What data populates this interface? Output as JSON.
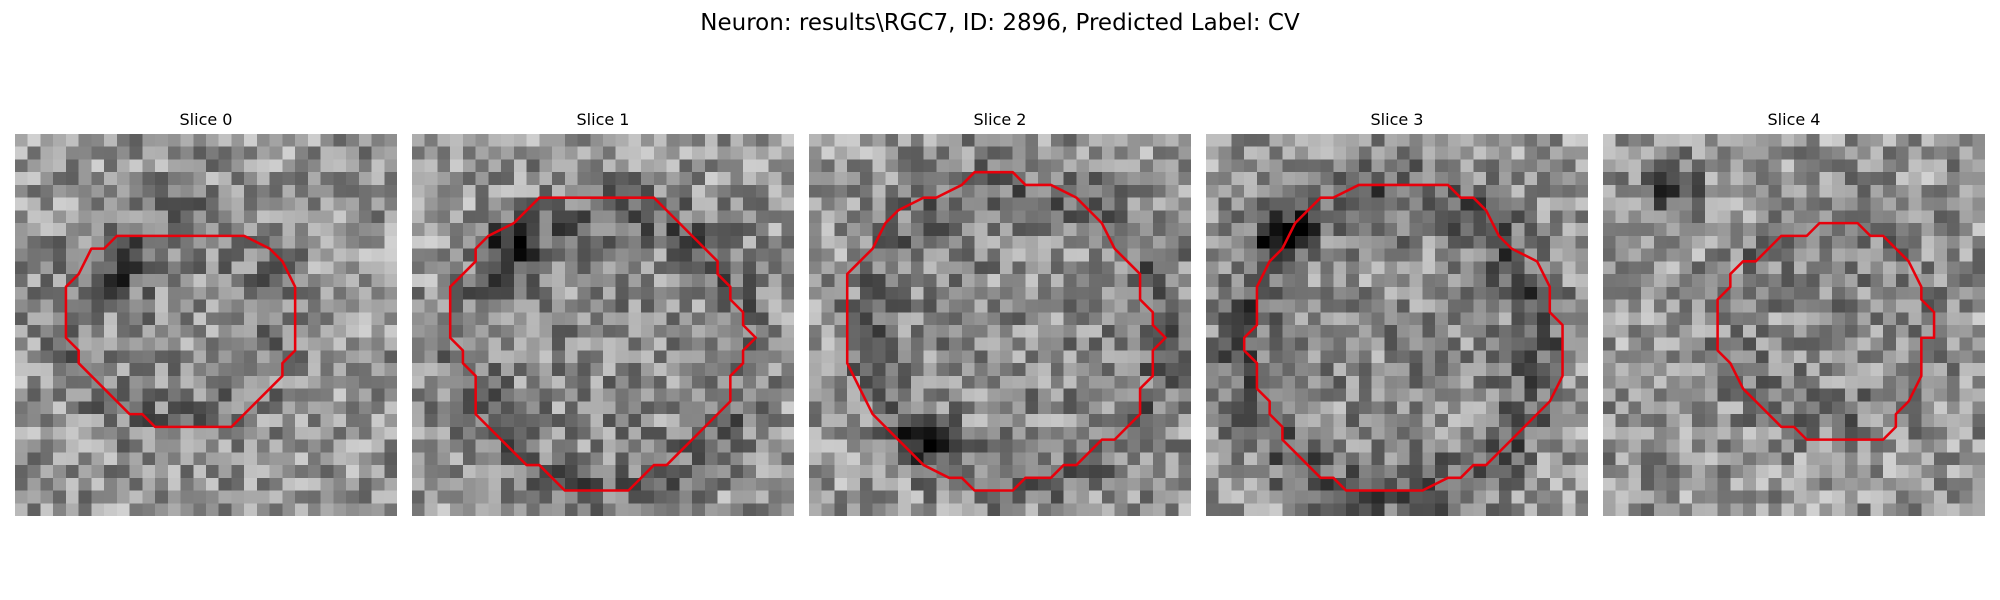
{
  "figure": {
    "title": "Neuron: results\\RGC7, ID: 2896, Predicted Label: CV"
  },
  "colors": {
    "contour": "#e8000b",
    "background": "#ffffff"
  },
  "image_grid": 30,
  "slices": [
    {
      "title": "Slice 0",
      "dark_ring": 0.35,
      "dark_spot": [
        8.5,
        10.5
      ],
      "contour": [
        [
          11,
          8
        ],
        [
          18,
          8
        ],
        [
          20,
          9
        ],
        [
          21,
          10
        ],
        [
          22,
          12
        ],
        [
          22,
          17
        ],
        [
          21,
          18
        ],
        [
          21,
          19
        ],
        [
          18,
          22
        ],
        [
          17,
          23
        ],
        [
          11,
          23
        ],
        [
          10,
          22
        ],
        [
          9,
          22
        ],
        [
          5,
          18
        ],
        [
          5,
          17
        ],
        [
          4,
          16
        ],
        [
          4,
          12
        ],
        [
          5,
          11
        ],
        [
          6,
          9
        ],
        [
          7,
          9
        ],
        [
          8,
          8
        ],
        [
          10,
          8
        ]
      ]
    },
    {
      "title": "Slice 1",
      "dark_ring": 0.55,
      "dark_spot": [
        8,
        9
      ],
      "contour": [
        [
          10,
          5
        ],
        [
          19,
          5
        ],
        [
          20,
          6
        ],
        [
          22,
          8
        ],
        [
          24,
          10
        ],
        [
          24,
          11
        ],
        [
          25,
          12
        ],
        [
          25,
          13
        ],
        [
          26,
          14
        ],
        [
          26,
          15
        ],
        [
          27,
          16
        ],
        [
          26,
          17
        ],
        [
          26,
          18
        ],
        [
          25,
          19
        ],
        [
          25,
          21
        ],
        [
          24,
          22
        ],
        [
          22,
          24
        ],
        [
          21,
          25
        ],
        [
          20,
          26
        ],
        [
          19,
          26
        ],
        [
          18,
          27
        ],
        [
          17,
          28
        ],
        [
          12,
          28
        ],
        [
          11,
          27
        ],
        [
          10,
          26
        ],
        [
          9,
          26
        ],
        [
          6,
          23
        ],
        [
          5,
          22
        ],
        [
          5,
          19
        ],
        [
          4,
          18
        ],
        [
          4,
          17
        ],
        [
          3,
          16
        ],
        [
          3,
          12
        ],
        [
          4,
          11
        ],
        [
          5,
          10
        ],
        [
          5,
          9
        ],
        [
          6,
          8
        ],
        [
          8,
          7
        ]
      ]
    },
    {
      "title": "Slice 2",
      "dark_ring": 0.5,
      "dark_spot": [
        9,
        24
      ],
      "contour": [
        [
          13,
          3
        ],
        [
          16,
          3
        ],
        [
          17,
          4
        ],
        [
          19,
          4
        ],
        [
          21,
          5
        ],
        [
          22,
          6
        ],
        [
          23,
          7
        ],
        [
          24,
          9
        ],
        [
          25,
          10
        ],
        [
          26,
          11
        ],
        [
          26,
          13
        ],
        [
          27,
          14
        ],
        [
          27,
          15
        ],
        [
          28,
          16
        ],
        [
          27,
          17
        ],
        [
          27,
          19
        ],
        [
          26,
          20
        ],
        [
          26,
          22
        ],
        [
          25,
          23
        ],
        [
          24,
          24
        ],
        [
          23,
          24
        ],
        [
          21,
          26
        ],
        [
          20,
          26
        ],
        [
          19,
          27
        ],
        [
          17,
          27
        ],
        [
          16,
          28
        ],
        [
          13,
          28
        ],
        [
          12,
          27
        ],
        [
          11,
          27
        ],
        [
          9,
          26
        ],
        [
          7,
          24
        ],
        [
          6,
          23
        ],
        [
          5,
          22
        ],
        [
          4,
          20
        ],
        [
          3,
          18
        ],
        [
          3,
          11
        ],
        [
          4,
          10
        ],
        [
          5,
          9
        ],
        [
          6,
          7
        ],
        [
          7,
          6
        ],
        [
          9,
          5
        ],
        [
          10,
          5
        ],
        [
          12,
          4
        ]
      ]
    },
    {
      "title": "Slice 3",
      "dark_ring": 0.75,
      "dark_spot": [
        6,
        8
      ],
      "contour": [
        [
          12,
          4
        ],
        [
          19,
          4
        ],
        [
          20,
          5
        ],
        [
          21,
          5
        ],
        [
          22,
          6
        ],
        [
          23,
          8
        ],
        [
          24,
          9
        ],
        [
          26,
          10
        ],
        [
          27,
          12
        ],
        [
          27,
          14
        ],
        [
          28,
          15
        ],
        [
          28,
          19
        ],
        [
          27,
          21
        ],
        [
          26,
          22
        ],
        [
          25,
          23
        ],
        [
          24,
          24
        ],
        [
          22,
          26
        ],
        [
          21,
          26
        ],
        [
          20,
          27
        ],
        [
          19,
          27
        ],
        [
          17,
          28
        ],
        [
          11,
          28
        ],
        [
          10,
          27
        ],
        [
          9,
          27
        ],
        [
          8,
          26
        ],
        [
          7,
          25
        ],
        [
          6,
          24
        ],
        [
          6,
          23
        ],
        [
          5,
          22
        ],
        [
          5,
          21
        ],
        [
          4,
          20
        ],
        [
          4,
          18
        ],
        [
          3,
          17
        ],
        [
          3,
          16
        ],
        [
          4,
          15
        ],
        [
          4,
          12
        ],
        [
          5,
          10
        ],
        [
          6,
          9
        ],
        [
          7,
          7
        ],
        [
          8,
          6
        ],
        [
          9,
          5
        ],
        [
          10,
          5
        ]
      ]
    },
    {
      "title": "Slice 4",
      "dark_ring": 0.25,
      "dark_spot": [
        5.5,
        4.5
      ],
      "contour": [
        [
          17,
          7
        ],
        [
          20,
          7
        ],
        [
          21,
          8
        ],
        [
          22,
          8
        ],
        [
          23,
          9
        ],
        [
          24,
          10
        ],
        [
          25,
          12
        ],
        [
          25,
          13
        ],
        [
          26,
          14
        ],
        [
          26,
          16
        ],
        [
          25,
          16
        ],
        [
          25,
          19
        ],
        [
          24,
          21
        ],
        [
          23,
          22
        ],
        [
          23,
          23
        ],
        [
          22,
          24
        ],
        [
          16,
          24
        ],
        [
          15,
          23
        ],
        [
          14,
          23
        ],
        [
          12,
          21
        ],
        [
          11,
          20
        ],
        [
          10,
          18
        ],
        [
          9,
          17
        ],
        [
          9,
          13
        ],
        [
          10,
          12
        ],
        [
          10,
          11
        ],
        [
          11,
          10
        ],
        [
          12,
          10
        ],
        [
          13,
          9
        ],
        [
          14,
          8
        ],
        [
          16,
          8
        ]
      ]
    }
  ]
}
